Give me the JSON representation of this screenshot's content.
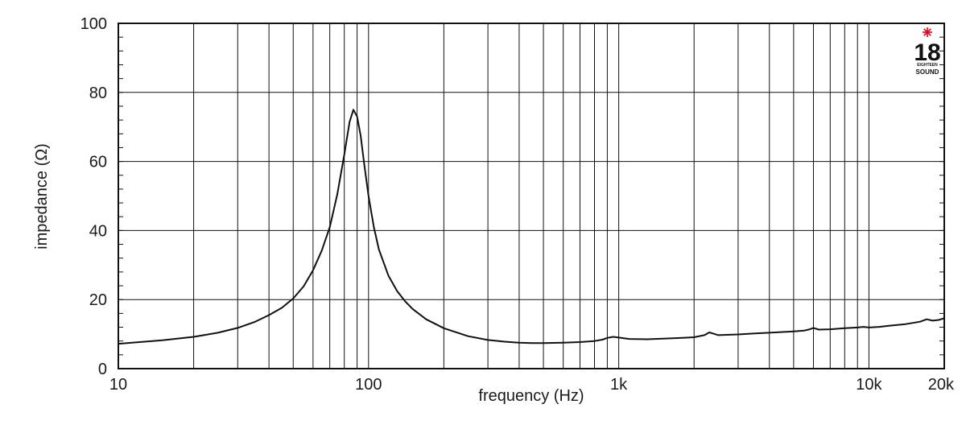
{
  "chart_data": {
    "type": "line",
    "xlabel": "frequency (Hz)",
    "ylabel": "impedance (Ω)",
    "x_scale": "log",
    "xlim": [
      10,
      20000
    ],
    "ylim": [
      0,
      100
    ],
    "grid": true,
    "x_ticks": [
      {
        "value": 10,
        "label": "10"
      },
      {
        "value": 100,
        "label": "100"
      },
      {
        "value": 1000,
        "label": "1k"
      },
      {
        "value": 10000,
        "label": "10k"
      },
      {
        "value": 20000,
        "label": "20k"
      }
    ],
    "y_ticks": [
      {
        "value": 0,
        "label": "0"
      },
      {
        "value": 20,
        "label": "20"
      },
      {
        "value": 40,
        "label": "40"
      },
      {
        "value": 60,
        "label": "60"
      },
      {
        "value": 80,
        "label": "80"
      },
      {
        "value": 100,
        "label": "100"
      }
    ],
    "x_gridlines": [
      20,
      30,
      40,
      50,
      60,
      70,
      80,
      90,
      100,
      200,
      300,
      400,
      500,
      600,
      700,
      800,
      900,
      1000,
      2000,
      3000,
      4000,
      5000,
      6000,
      7000,
      8000,
      9000,
      10000
    ],
    "y_gridlines": [
      20,
      40,
      60,
      80
    ],
    "line_color": "#111111",
    "series": [
      {
        "points": [
          [
            10,
            7.2
          ],
          [
            15,
            8.2
          ],
          [
            20,
            9.2
          ],
          [
            25,
            10.4
          ],
          [
            30,
            11.8
          ],
          [
            35,
            13.5
          ],
          [
            40,
            15.5
          ],
          [
            45,
            17.6
          ],
          [
            50,
            20.3
          ],
          [
            55,
            23.8
          ],
          [
            60,
            28.5
          ],
          [
            65,
            34.2
          ],
          [
            70,
            41.0
          ],
          [
            75,
            50.5
          ],
          [
            80,
            62.0
          ],
          [
            84,
            71.5
          ],
          [
            87,
            75.0
          ],
          [
            90,
            73.0
          ],
          [
            93,
            67.5
          ],
          [
            96,
            59.5
          ],
          [
            100,
            50.0
          ],
          [
            105,
            41.0
          ],
          [
            110,
            34.5
          ],
          [
            120,
            27.0
          ],
          [
            130,
            22.5
          ],
          [
            140,
            19.5
          ],
          [
            150,
            17.3
          ],
          [
            170,
            14.3
          ],
          [
            200,
            11.7
          ],
          [
            250,
            9.4
          ],
          [
            300,
            8.3
          ],
          [
            350,
            7.8
          ],
          [
            400,
            7.5
          ],
          [
            450,
            7.4
          ],
          [
            500,
            7.4
          ],
          [
            600,
            7.5
          ],
          [
            700,
            7.7
          ],
          [
            800,
            8.0
          ],
          [
            860,
            8.4
          ],
          [
            900,
            8.9
          ],
          [
            950,
            9.2
          ],
          [
            1000,
            9.0
          ],
          [
            1100,
            8.6
          ],
          [
            1300,
            8.5
          ],
          [
            1500,
            8.7
          ],
          [
            1800,
            8.9
          ],
          [
            2000,
            9.1
          ],
          [
            2200,
            9.7
          ],
          [
            2300,
            10.5
          ],
          [
            2400,
            10.1
          ],
          [
            2500,
            9.7
          ],
          [
            3000,
            9.9
          ],
          [
            3500,
            10.2
          ],
          [
            4000,
            10.4
          ],
          [
            5000,
            10.8
          ],
          [
            5500,
            11.0
          ],
          [
            5800,
            11.4
          ],
          [
            6000,
            11.8
          ],
          [
            6300,
            11.3
          ],
          [
            7000,
            11.4
          ],
          [
            8000,
            11.7
          ],
          [
            9000,
            11.9
          ],
          [
            9500,
            12.1
          ],
          [
            10000,
            11.9
          ],
          [
            11000,
            12.1
          ],
          [
            12000,
            12.4
          ],
          [
            14000,
            12.9
          ],
          [
            16000,
            13.6
          ],
          [
            17000,
            14.3
          ],
          [
            18000,
            13.9
          ],
          [
            19000,
            14.1
          ],
          [
            20000,
            14.6
          ]
        ]
      }
    ]
  },
  "logo": {
    "number": "18",
    "line1": "EIGHTEEN",
    "line2": "SOUND",
    "star_color": "#e0001a"
  }
}
